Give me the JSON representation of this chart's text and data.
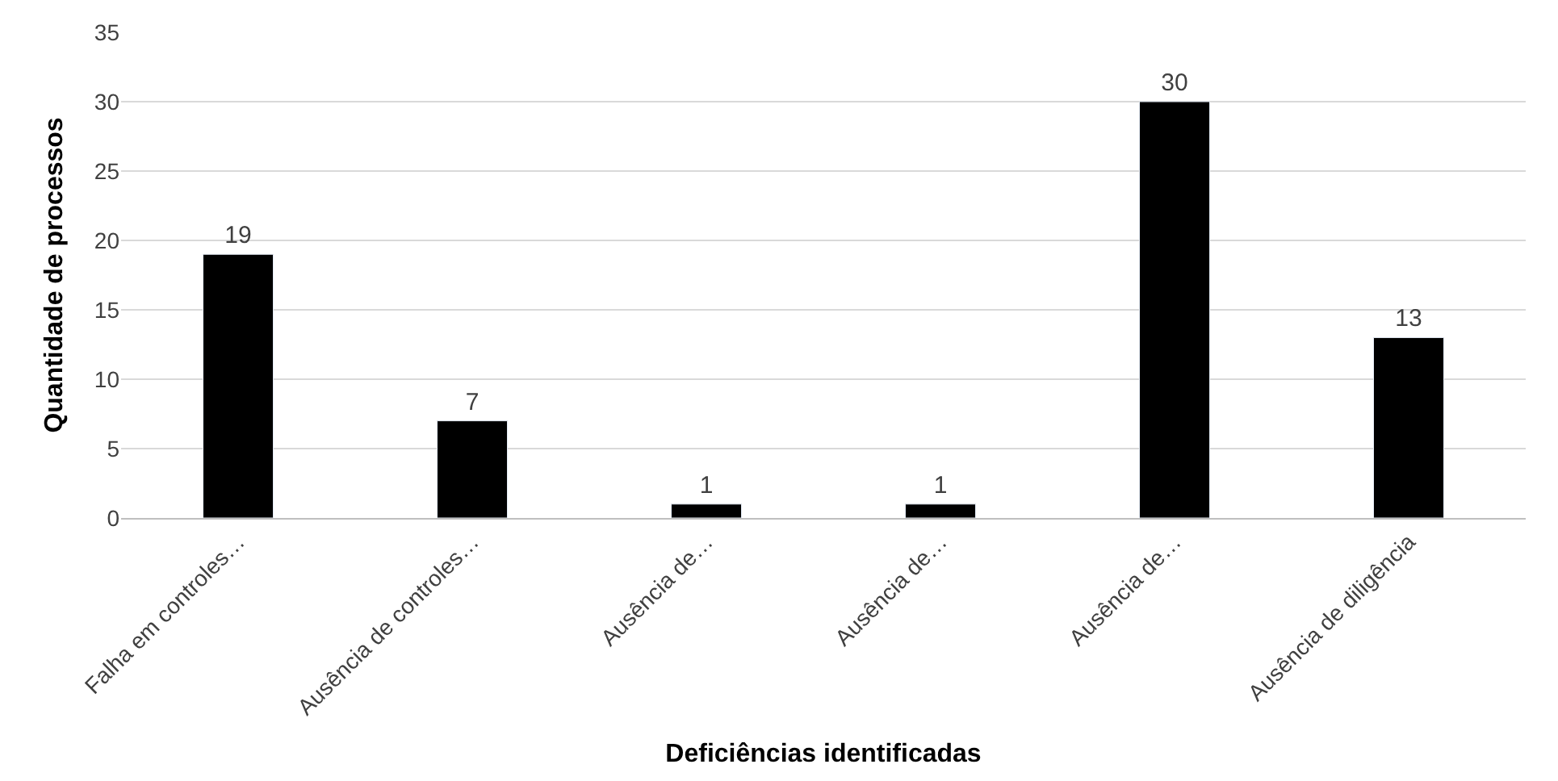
{
  "chart_data": {
    "type": "bar",
    "xlabel": "Deficiências identificadas",
    "ylabel": "Quantidade de processos",
    "categories": [
      "Falha em controles…",
      "Ausência de controles…",
      "Ausência de…",
      "Ausência de…",
      "Ausência de…",
      "Ausência de diligência"
    ],
    "values": [
      19,
      7,
      1,
      1,
      30,
      13
    ],
    "color": "#000000",
    "ylim": [
      0,
      35
    ],
    "yticks": [
      0,
      5,
      10,
      15,
      20,
      25,
      30,
      35
    ],
    "grid": "y",
    "data_labels": true
  }
}
